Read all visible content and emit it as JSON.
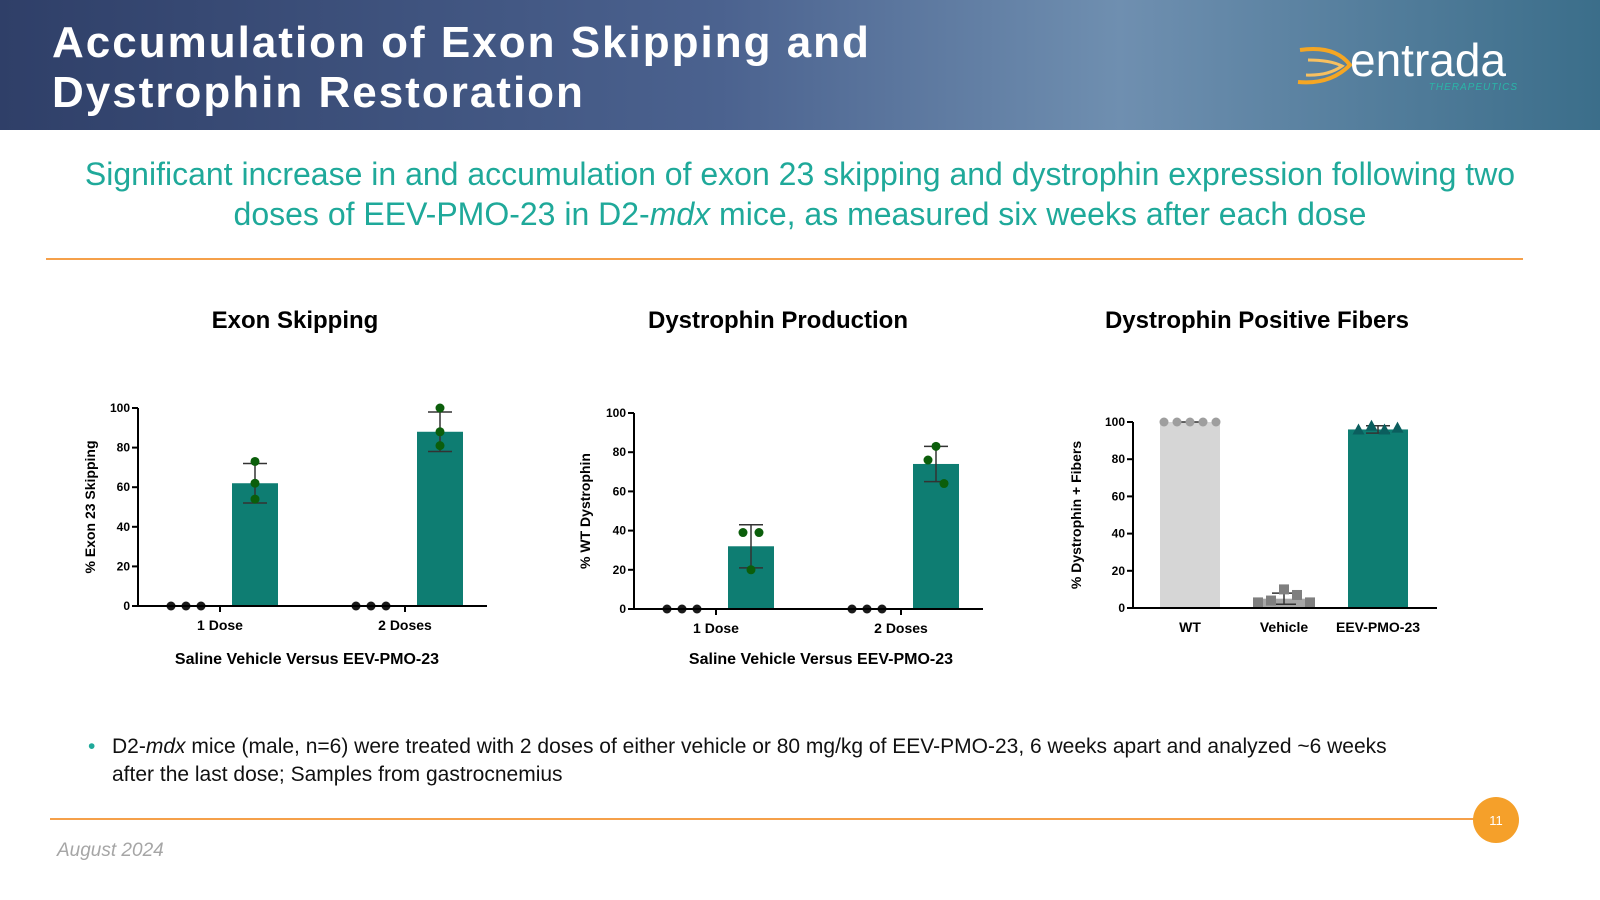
{
  "header": {
    "title": [
      "Accumulation of Exon Skipping and",
      "Dystrophin Restoration"
    ]
  },
  "logo": {
    "name": "entrada",
    "tagline": "THERAPEUTICS"
  },
  "subtitle": [
    "Significant increase in and accumulation of exon 23 skipping and dystrophin expression following two doses of EEV-PMO-23 in D2-",
    "mdx",
    " mice, as measured six weeks after each dose"
  ],
  "bullet": [
    "D2-",
    "mdx",
    " mice (male, n=6) were treated with 2 doses of either vehicle or 80 mg/kg of EEV-PMO-23, 6 weeks apart and analyzed ~6 weeks after the last dose; Samples from gastrocnemius"
  ],
  "footer": {
    "date": "August 2024",
    "page": "11"
  },
  "chart_data": [
    {
      "type": "bar",
      "title": "Exon Skipping",
      "x_label": "Saline Vehicle Versus EEV-PMO-23",
      "y_label": "% Exon 23 Skipping",
      "categories": [
        "1 Dose",
        "2 Doses"
      ],
      "ylim": [
        0,
        100
      ],
      "yticks": [
        0,
        20,
        40,
        60,
        80,
        100
      ],
      "series": [
        {
          "color": "#1a1a1a",
          "values": [
            0,
            0
          ],
          "points": [
            [
              0,
              0,
              0
            ],
            [
              0,
              0,
              0
            ]
          ],
          "marker": "circle"
        },
        {
          "color": "#0e7d72",
          "point_color": "#0b5e0b",
          "values": [
            62,
            88
          ],
          "errors": [
            10,
            10
          ],
          "points": [
            [
              73,
              62,
              54
            ],
            [
              100,
              88,
              81
            ]
          ],
          "marker": "circle"
        }
      ]
    },
    {
      "type": "bar",
      "title": "Dystrophin Production",
      "x_label": "Saline Vehicle Versus EEV-PMO-23",
      "y_label": "% WT Dystrophin",
      "categories": [
        "1 Dose",
        "2 Doses"
      ],
      "ylim": [
        0,
        100
      ],
      "yticks": [
        0,
        20,
        40,
        60,
        80,
        100
      ],
      "series": [
        {
          "color": "#1a1a1a",
          "values": [
            0,
            0
          ],
          "points": [
            [
              0,
              0,
              0
            ],
            [
              0,
              0,
              0
            ]
          ],
          "marker": "circle"
        },
        {
          "color": "#0e7d72",
          "point_color": "#0b5e0b",
          "values": [
            32,
            74
          ],
          "errors": [
            11,
            9
          ],
          "points": [
            [
              39,
              20,
              39
            ],
            [
              76,
              83,
              64
            ]
          ],
          "marker": "circle"
        }
      ]
    },
    {
      "type": "bar",
      "title": "Dystrophin Positive Fibers",
      "y_label": "% Dystrophin + Fibers",
      "categories": [
        "WT",
        "Vehicle",
        "EEV-PMO-23"
      ],
      "ylim": [
        0,
        100
      ],
      "yticks": [
        0,
        20,
        40,
        60,
        80,
        100
      ],
      "series": [
        {
          "colors": [
            "#d6d6d6",
            "#a6a6a6",
            "#0e7d72"
          ],
          "point_colors": [
            "#9e9e9e",
            "#7f7f7f",
            "#0b5e5e"
          ],
          "markers": [
            "circle",
            "square",
            "triangle"
          ],
          "values": [
            100,
            5,
            96
          ],
          "errors": [
            0,
            3,
            2
          ],
          "points": [
            [
              100,
              100,
              100,
              100,
              100
            ],
            [
              3,
              4,
              10,
              7,
              3
            ],
            [
              96,
              98,
              96,
              97
            ]
          ]
        }
      ]
    }
  ]
}
